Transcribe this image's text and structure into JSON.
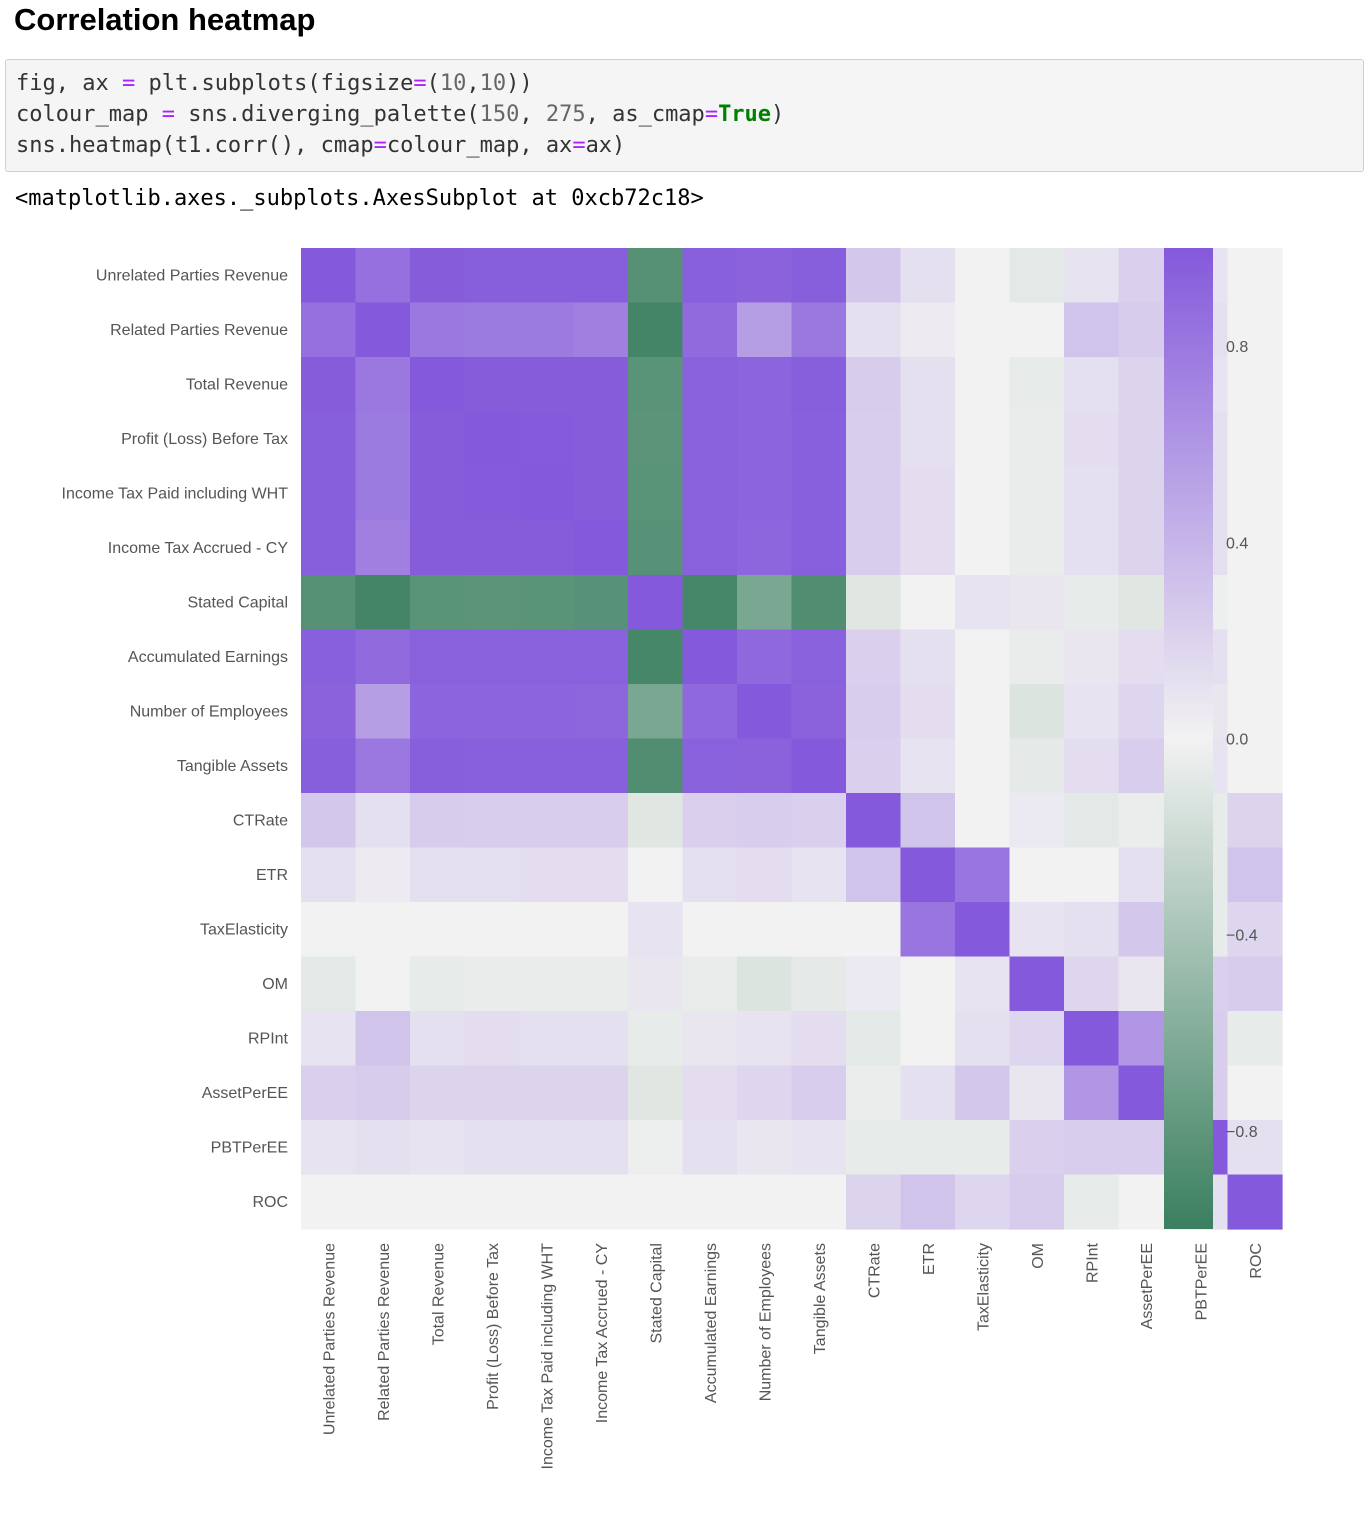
{
  "heading": "Correlation heatmap",
  "code": {
    "line1": {
      "a": "fig, ax ",
      "b": "=",
      "c": " plt.subplots(figsize",
      "d": "=",
      "e": "(",
      "f": "10",
      "g": ",",
      "h": "10",
      "i": "))"
    },
    "line2": {
      "a": "colour_map ",
      "b": "=",
      "c": " sns.diverging_palette(",
      "d": "150",
      "e": ", ",
      "f": "275",
      "g": ", as_cmap",
      "h": "=",
      "i": "True",
      "j": ")"
    },
    "line3": {
      "a": "sns.heatmap(t1.corr(), cmap",
      "b": "=",
      "c": "colour_map, ax",
      "d": "=",
      "e": "ax)"
    }
  },
  "output": "<matplotlib.axes._subplots.AxesSubplot at 0xcb72c18>",
  "chart_data": {
    "type": "heatmap",
    "labels": [
      "Unrelated Parties Revenue",
      "Related Parties Revenue",
      "Total Revenue",
      "Profit (Loss) Before Tax",
      "Income Tax Paid including WHT",
      "Income Tax Accrued - CY",
      "Stated Capital",
      "Accumulated Earnings",
      "Number of Employees",
      "Tangible Assets",
      "CTRate",
      "ETR",
      "TaxElasticity",
      "OM",
      "RPInt",
      "AssetPerEE",
      "PBTPerEE",
      "ROC"
    ],
    "values": [
      [
        1.0,
        0.85,
        0.98,
        0.97,
        0.97,
        0.97,
        -0.85,
        0.96,
        0.94,
        0.97,
        0.28,
        0.12,
        0.0,
        -0.08,
        0.1,
        0.22,
        0.1,
        0.0
      ],
      [
        0.85,
        1.0,
        0.8,
        0.78,
        0.78,
        0.75,
        -0.95,
        0.88,
        0.55,
        0.8,
        0.12,
        0.05,
        0.0,
        0.0,
        0.3,
        0.25,
        0.12,
        0.0
      ],
      [
        0.98,
        0.8,
        1.0,
        0.98,
        0.98,
        0.98,
        -0.83,
        0.95,
        0.93,
        0.97,
        0.25,
        0.12,
        0.0,
        -0.06,
        0.12,
        0.2,
        0.1,
        0.0
      ],
      [
        0.97,
        0.78,
        0.98,
        1.0,
        0.99,
        0.98,
        -0.82,
        0.95,
        0.93,
        0.96,
        0.24,
        0.12,
        0.0,
        -0.05,
        0.14,
        0.2,
        0.12,
        0.0
      ],
      [
        0.97,
        0.78,
        0.98,
        0.99,
        1.0,
        0.98,
        -0.83,
        0.95,
        0.93,
        0.96,
        0.24,
        0.14,
        0.0,
        -0.05,
        0.12,
        0.2,
        0.12,
        0.0
      ],
      [
        0.97,
        0.75,
        0.98,
        0.98,
        0.98,
        1.0,
        -0.84,
        0.95,
        0.92,
        0.96,
        0.24,
        0.14,
        0.0,
        -0.05,
        0.12,
        0.2,
        0.12,
        0.0
      ],
      [
        -0.85,
        -0.95,
        -0.83,
        -0.82,
        -0.83,
        -0.84,
        1.0,
        -0.93,
        -0.65,
        -0.88,
        -0.1,
        0.0,
        0.1,
        0.08,
        -0.06,
        -0.1,
        -0.03,
        0.0
      ],
      [
        0.96,
        0.88,
        0.95,
        0.95,
        0.95,
        0.95,
        -0.93,
        1.0,
        0.9,
        0.95,
        0.22,
        0.12,
        0.0,
        -0.05,
        0.08,
        0.14,
        0.12,
        0.0
      ],
      [
        0.94,
        0.55,
        0.93,
        0.93,
        0.93,
        0.92,
        -0.65,
        0.9,
        1.0,
        0.94,
        0.24,
        0.14,
        0.0,
        -0.12,
        0.1,
        0.18,
        0.08,
        0.0
      ],
      [
        0.97,
        0.8,
        0.97,
        0.96,
        0.96,
        0.96,
        -0.88,
        0.95,
        0.94,
        1.0,
        0.22,
        0.1,
        0.0,
        -0.07,
        0.14,
        0.24,
        0.1,
        0.0
      ],
      [
        0.28,
        0.12,
        0.25,
        0.24,
        0.24,
        0.24,
        -0.1,
        0.22,
        0.24,
        0.22,
        1.0,
        0.3,
        0.0,
        0.06,
        -0.08,
        -0.04,
        -0.06,
        0.2
      ],
      [
        0.12,
        0.05,
        0.12,
        0.12,
        0.14,
        0.14,
        0.0,
        0.12,
        0.14,
        0.1,
        0.3,
        1.0,
        0.82,
        0.0,
        0.0,
        0.12,
        -0.06,
        0.3
      ],
      [
        0.0,
        0.0,
        0.0,
        0.0,
        0.0,
        0.0,
        0.1,
        0.0,
        0.0,
        0.0,
        0.0,
        0.82,
        1.0,
        0.1,
        0.12,
        0.28,
        -0.06,
        0.18
      ],
      [
        -0.08,
        0.0,
        -0.06,
        -0.05,
        -0.05,
        -0.05,
        0.08,
        -0.05,
        -0.12,
        -0.07,
        0.06,
        0.0,
        0.1,
        1.0,
        0.18,
        0.08,
        0.22,
        0.25
      ],
      [
        0.1,
        0.3,
        0.12,
        0.14,
        0.12,
        0.12,
        -0.06,
        0.08,
        0.1,
        0.14,
        -0.08,
        0.0,
        0.12,
        0.18,
        1.0,
        0.6,
        0.24,
        -0.06
      ],
      [
        0.22,
        0.25,
        0.2,
        0.2,
        0.2,
        0.2,
        -0.1,
        0.14,
        0.18,
        0.24,
        -0.04,
        0.12,
        0.28,
        0.08,
        0.6,
        1.0,
        0.24,
        0.0
      ],
      [
        0.1,
        0.12,
        0.1,
        0.12,
        0.12,
        0.12,
        -0.03,
        0.12,
        0.08,
        0.1,
        -0.06,
        -0.06,
        -0.06,
        0.22,
        0.24,
        0.24,
        1.0,
        0.12
      ],
      [
        0.0,
        0.0,
        0.0,
        0.0,
        0.0,
        0.0,
        0.0,
        0.0,
        0.0,
        0.0,
        0.2,
        0.3,
        0.18,
        0.25,
        -0.06,
        0.0,
        0.12,
        1.0
      ]
    ],
    "colorbar_ticks": [
      "0.8",
      "0.4",
      "0.0",
      "−0.4",
      "−0.8"
    ],
    "colorbar_tick_values": [
      0.8,
      0.4,
      0.0,
      -0.4,
      -0.8
    ],
    "vmin": -1.0,
    "vmax": 1.0,
    "colors": {
      "negative": "#3a7f5f",
      "center": "#f2f2f2",
      "positive": "#8459db"
    },
    "colorbar": "right",
    "grid": false
  }
}
